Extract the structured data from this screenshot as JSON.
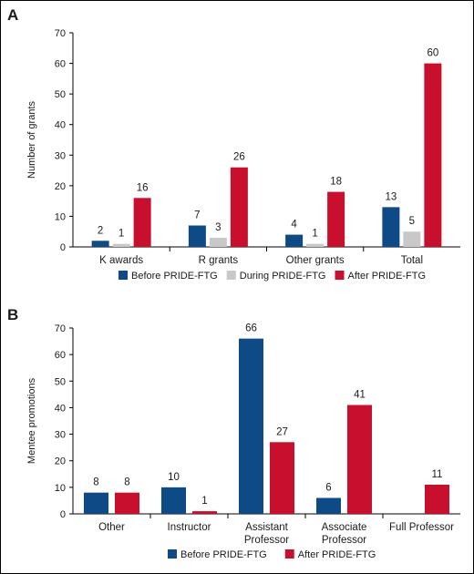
{
  "chart_data": [
    {
      "panel": "A",
      "type": "bar",
      "ylabel": "Number of grants",
      "xlabel": "",
      "ylim": [
        0,
        70
      ],
      "yticks": [
        0,
        10,
        20,
        30,
        40,
        50,
        60,
        70
      ],
      "categories": [
        "K awards",
        "R grants",
        "Other grants",
        "Total"
      ],
      "series": [
        {
          "name": "Before PRIDE-FTG",
          "color": "#0d4a86",
          "values": [
            2,
            7,
            4,
            13
          ]
        },
        {
          "name": "During PRIDE-FTG",
          "color": "#c8c8c8",
          "values": [
            1,
            3,
            1,
            5
          ]
        },
        {
          "name": "After PRIDE-FTG",
          "color": "#c8102e",
          "values": [
            16,
            26,
            18,
            60
          ]
        }
      ],
      "legend": "bottom"
    },
    {
      "panel": "B",
      "type": "bar",
      "ylabel": "Mentee promotions",
      "xlabel": "",
      "ylim": [
        0,
        70
      ],
      "yticks": [
        0,
        10,
        20,
        30,
        40,
        50,
        60,
        70
      ],
      "categories": [
        [
          "Other"
        ],
        [
          "Instructor"
        ],
        [
          "Assistant",
          "Professor"
        ],
        [
          "Associate",
          "Professor"
        ],
        [
          "Full Professor"
        ]
      ],
      "series": [
        {
          "name": "Before PRIDE-FTG",
          "color": "#0d4a86",
          "values": [
            8,
            10,
            66,
            6,
            null
          ]
        },
        {
          "name": "After PRIDE-FTG",
          "color": "#c8102e",
          "values": [
            8,
            1,
            27,
            41,
            11
          ]
        }
      ],
      "legend": "bottom"
    }
  ]
}
